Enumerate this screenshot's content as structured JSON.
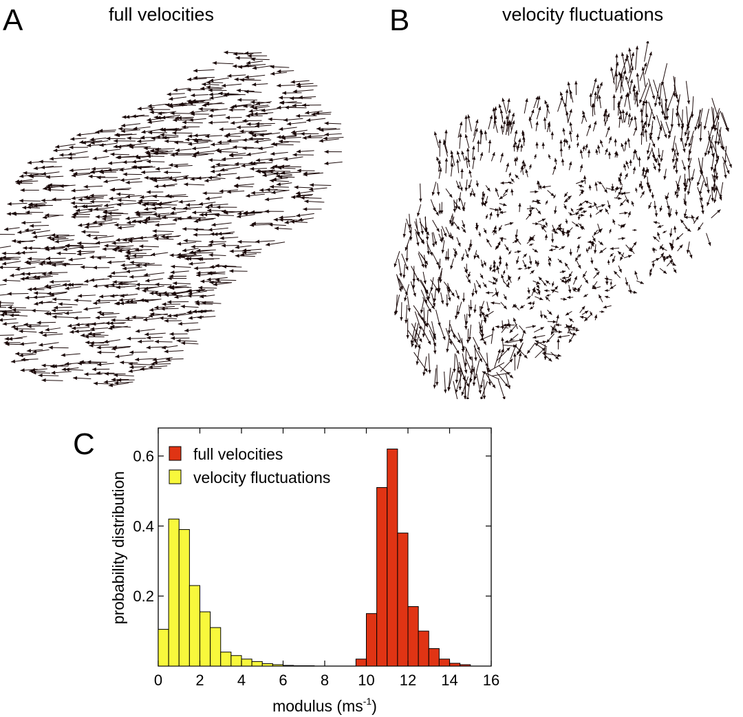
{
  "panels": {
    "a": {
      "letter": "A",
      "title": "full velocities"
    },
    "b": {
      "letter": "B",
      "title": "velocity fluctuations"
    },
    "c": {
      "letter": "C"
    }
  },
  "colors": {
    "arrow": "#1a0808",
    "full": "#e03414",
    "fluct": "#f8f83c",
    "edge": "#000000"
  },
  "chart_data": {
    "type": "bar",
    "xlabel": "modulus (ms",
    "xlabel_sup": "-1",
    "xlabel_end": ")",
    "ylabel": "probability distribution",
    "xlim": [
      0,
      16
    ],
    "ylim": [
      0,
      0.68
    ],
    "xticks": [
      0,
      2,
      4,
      6,
      8,
      10,
      12,
      14,
      16
    ],
    "xtick_labels": [
      "0",
      "2",
      "4",
      "6",
      "8",
      "10",
      "12",
      "14",
      "16"
    ],
    "yticks": [
      0.2,
      0.4,
      0.6
    ],
    "ytick_labels": [
      "0.2",
      "0.4",
      "0.6"
    ],
    "bin_width": 0.5,
    "legend_position": "top-left",
    "series": [
      {
        "name": "full velocities",
        "bin_starts": [
          9.5,
          10,
          10.5,
          11,
          11.5,
          12,
          12.5,
          13,
          13.5,
          14,
          14.5
        ],
        "values": [
          0.02,
          0.15,
          0.51,
          0.62,
          0.38,
          0.17,
          0.1,
          0.05,
          0.02,
          0.008,
          0.004
        ]
      },
      {
        "name": "velocity fluctuations",
        "bin_starts": [
          0,
          0.5,
          1,
          1.5,
          2,
          2.5,
          3,
          3.5,
          4,
          4.5,
          5,
          5.5,
          6,
          6.5,
          7
        ],
        "values": [
          0.105,
          0.42,
          0.39,
          0.23,
          0.155,
          0.11,
          0.04,
          0.03,
          0.02,
          0.013,
          0.007,
          0.004,
          0.002,
          0.001,
          0.001
        ]
      }
    ]
  }
}
